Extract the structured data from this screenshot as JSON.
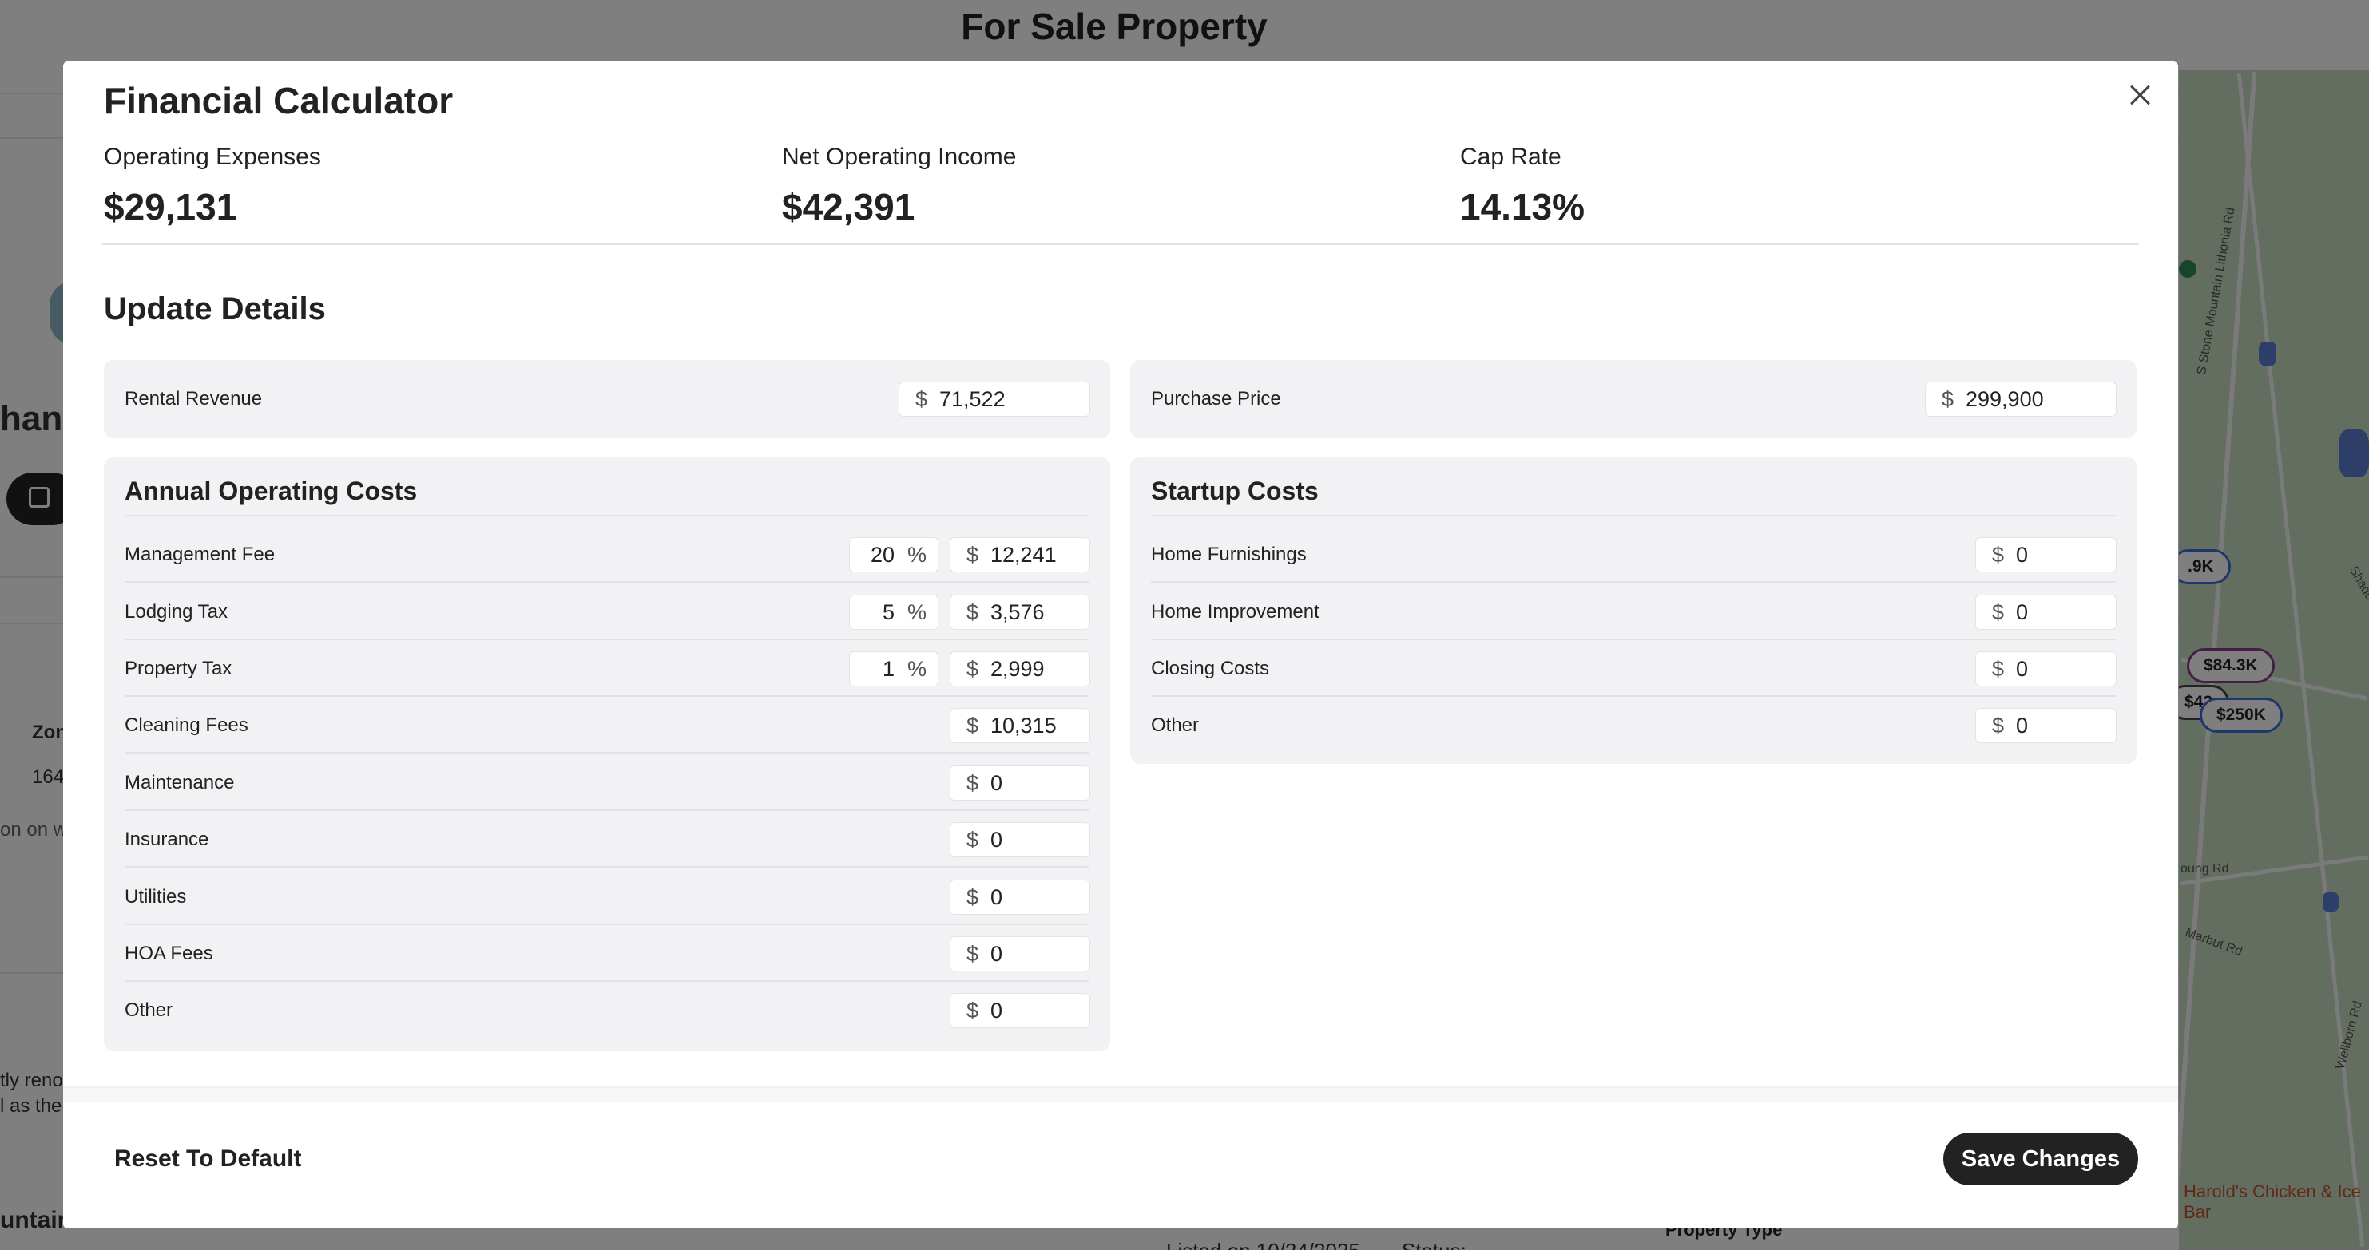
{
  "background": {
    "page_title": "For Sale Property",
    "left_fragments": {
      "heading": "hanc",
      "zone_label": "Zon",
      "zone_value": "164",
      "text_1": "on on w",
      "text_2": "tly reno",
      "text_3": "l as the",
      "text_4": "untain"
    },
    "listed_text": "Listed on 10/24/2025",
    "status_text": "Status:",
    "property_type_label": "Property Type",
    "map": {
      "road_labels": [
        "S Stone Mountain Lithonia Rd",
        "Shadow Rd",
        "oung Rd",
        "Marbut Rd",
        "Wellborn Rd"
      ],
      "pins": [
        "$84.3K",
        "$250K",
        "$42",
        ".9K"
      ],
      "poi": "Harold's Chicken & Ice Bar"
    }
  },
  "modal": {
    "title": "Financial Calculator",
    "metrics": [
      {
        "label": "Operating Expenses",
        "value": "$29,131"
      },
      {
        "label": "Net Operating Income",
        "value": "$42,391"
      },
      {
        "label": "Cap Rate",
        "value": "14.13%"
      }
    ],
    "section_title": "Update Details",
    "rental_revenue": {
      "label": "Rental Revenue",
      "currency": "$",
      "value": "71,522"
    },
    "purchase_price": {
      "label": "Purchase Price",
      "currency": "$",
      "value": "299,900"
    },
    "operating_costs": {
      "title": "Annual Operating Costs",
      "rows": [
        {
          "label": "Management Fee",
          "percent": "20",
          "percent_symbol": "%",
          "currency": "$",
          "value": "12,241"
        },
        {
          "label": "Lodging Tax",
          "percent": "5",
          "percent_symbol": "%",
          "currency": "$",
          "value": "3,576"
        },
        {
          "label": "Property Tax",
          "percent": "1",
          "percent_symbol": "%",
          "currency": "$",
          "value": "2,999"
        },
        {
          "label": "Cleaning Fees",
          "currency": "$",
          "value": "10,315"
        },
        {
          "label": "Maintenance",
          "currency": "$",
          "value": "0"
        },
        {
          "label": "Insurance",
          "currency": "$",
          "value": "0"
        },
        {
          "label": "Utilities",
          "currency": "$",
          "value": "0"
        },
        {
          "label": "HOA Fees",
          "currency": "$",
          "value": "0"
        },
        {
          "label": "Other",
          "currency": "$",
          "value": "0"
        }
      ]
    },
    "startup_costs": {
      "title": "Startup Costs",
      "rows": [
        {
          "label": "Home Furnishings",
          "currency": "$",
          "value": "0"
        },
        {
          "label": "Home Improvement",
          "currency": "$",
          "value": "0"
        },
        {
          "label": "Closing Costs",
          "currency": "$",
          "value": "0"
        },
        {
          "label": "Other",
          "currency": "$",
          "value": "0"
        }
      ]
    },
    "reset_label": "Reset To Default",
    "save_label": "Save Changes"
  },
  "colors": {
    "overlay": "#000000",
    "card_background": "#f2f2f5",
    "primary_button": "#222222"
  }
}
